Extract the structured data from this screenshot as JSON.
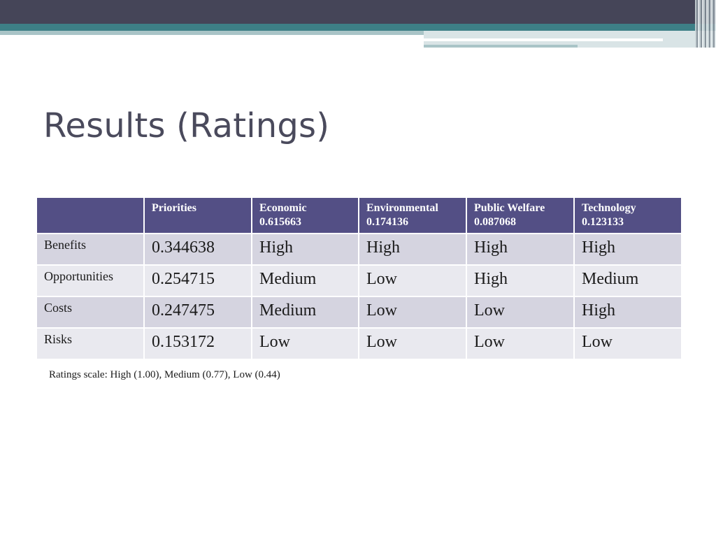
{
  "colors": {
    "top_band": "#454558",
    "accent_teal": "#3d7f86",
    "table_header": "#534f85",
    "row_dark": "#d5d4e0",
    "row_light": "#e9e9ef",
    "title_text": "#4a4a5c"
  },
  "slide": {
    "title": "Results (Ratings)"
  },
  "table": {
    "headers": [
      {
        "name": "",
        "weight": ""
      },
      {
        "name": "Priorities",
        "weight": ""
      },
      {
        "name": "Economic",
        "weight": "0.615663"
      },
      {
        "name": "Environmental",
        "weight": "0.174136"
      },
      {
        "name": "Public Welfare",
        "weight": "0.087068"
      },
      {
        "name": "Technology",
        "weight": "0.123133"
      }
    ],
    "rows": [
      {
        "label": "Benefits",
        "cells": [
          "0.344638",
          "High",
          "High",
          "High",
          "High"
        ]
      },
      {
        "label": "Opportunities",
        "cells": [
          "0.254715",
          "Medium",
          "Low",
          "High",
          "Medium"
        ]
      },
      {
        "label": "Costs",
        "cells": [
          "0.247475",
          "Medium",
          "Low",
          "Low",
          "High"
        ]
      },
      {
        "label": "Risks",
        "cells": [
          "0.153172",
          "Low",
          "Low",
          "Low",
          "Low"
        ]
      }
    ]
  },
  "footnote": "Ratings scale: High (1.00), Medium (0.77), Low (0.44)"
}
